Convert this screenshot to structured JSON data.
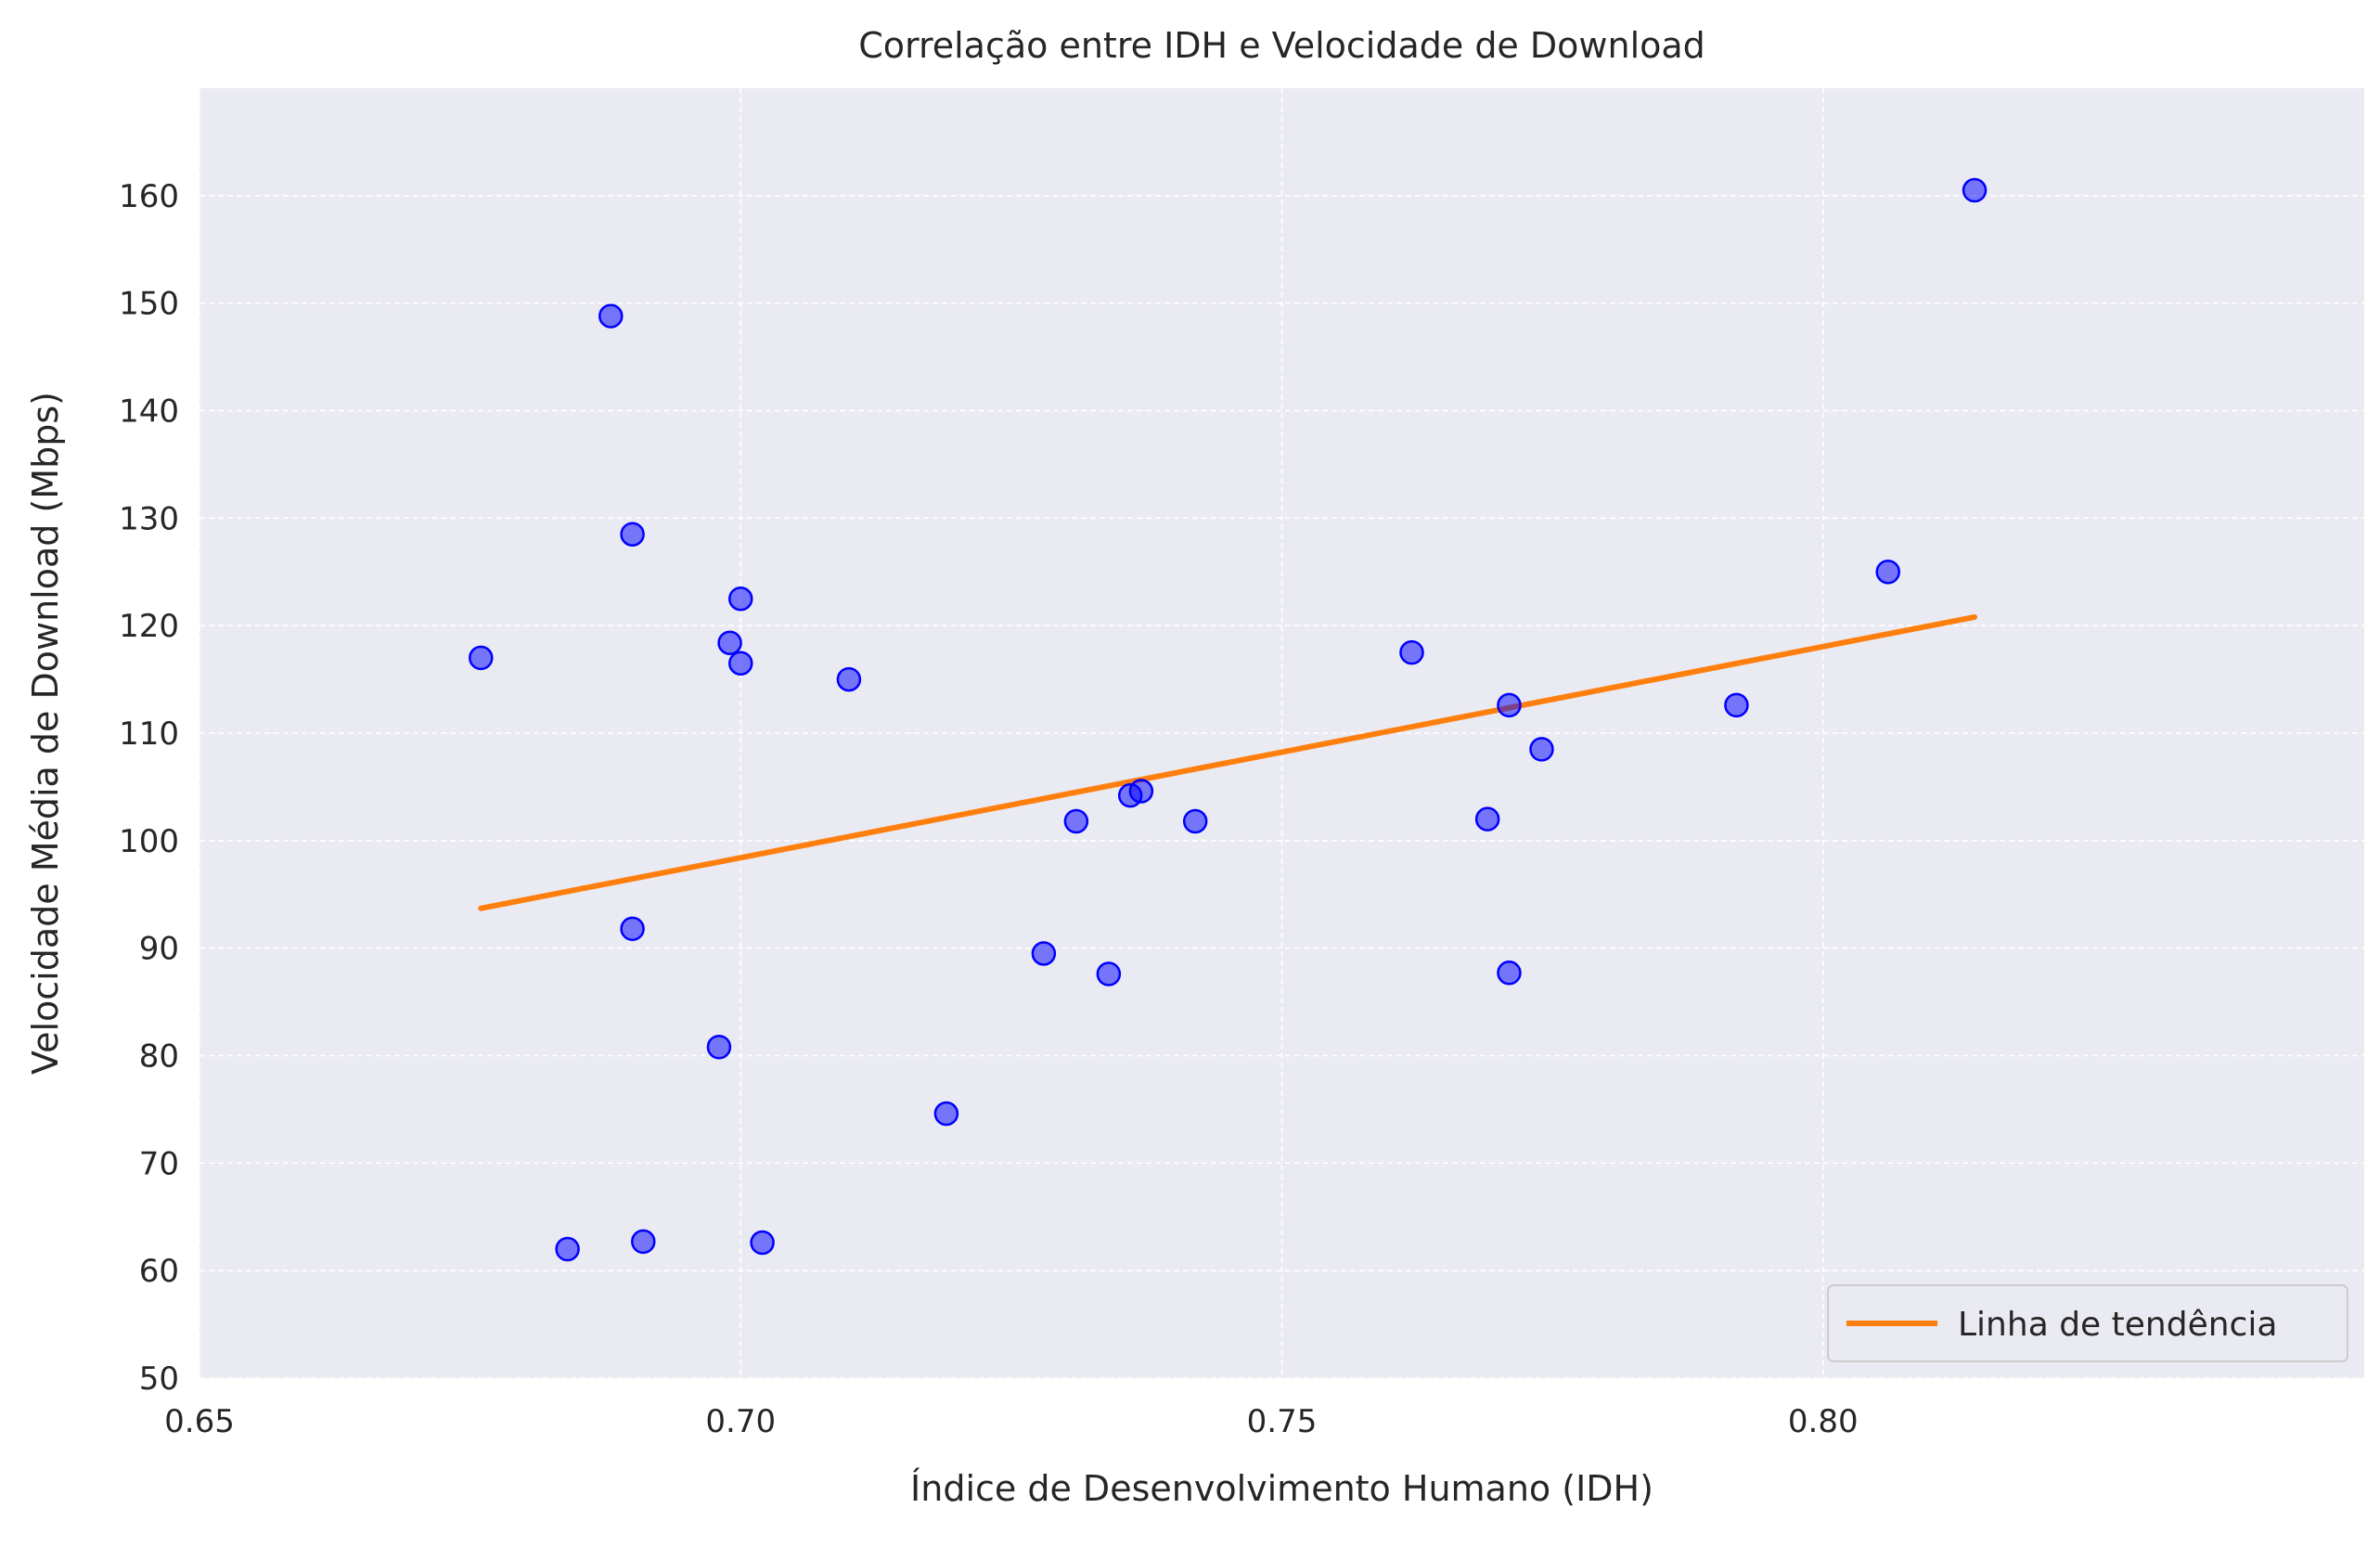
{
  "chart_data": {
    "type": "scatter",
    "title": "Correlação entre IDH e Velocidade de Download",
    "xlabel": "Índice de Desenvolvimento Humano (IDH)",
    "ylabel": "Velocidade Média de Download (Mbps)",
    "xlim": [
      0.65,
      0.85
    ],
    "ylim": [
      50,
      170
    ],
    "xticks": [
      0.65,
      0.7,
      0.75,
      0.8
    ],
    "xtick_labels": [
      "0.65",
      "0.70",
      "0.75",
      "0.80"
    ],
    "yticks": [
      50,
      60,
      70,
      80,
      90,
      100,
      110,
      120,
      130,
      140,
      150,
      160
    ],
    "ytick_labels": [
      "50",
      "60",
      "70",
      "80",
      "90",
      "100",
      "110",
      "120",
      "130",
      "140",
      "150",
      "160"
    ],
    "grid": true,
    "legend_position": "lower-right",
    "background_color": "#eaeaf2",
    "series": [
      {
        "kind": "scatter",
        "color": "#0000ff",
        "points": [
          {
            "x": 0.676,
            "y": 117.0
          },
          {
            "x": 0.684,
            "y": 62.0
          },
          {
            "x": 0.688,
            "y": 148.8
          },
          {
            "x": 0.69,
            "y": 128.5
          },
          {
            "x": 0.69,
            "y": 91.8
          },
          {
            "x": 0.691,
            "y": 62.7
          },
          {
            "x": 0.698,
            "y": 80.8
          },
          {
            "x": 0.699,
            "y": 118.4
          },
          {
            "x": 0.7,
            "y": 122.5
          },
          {
            "x": 0.7,
            "y": 116.5
          },
          {
            "x": 0.702,
            "y": 62.6
          },
          {
            "x": 0.71,
            "y": 115.0
          },
          {
            "x": 0.719,
            "y": 74.6
          },
          {
            "x": 0.728,
            "y": 89.5
          },
          {
            "x": 0.731,
            "y": 101.8
          },
          {
            "x": 0.734,
            "y": 87.6
          },
          {
            "x": 0.736,
            "y": 104.2
          },
          {
            "x": 0.737,
            "y": 104.6
          },
          {
            "x": 0.742,
            "y": 101.8
          },
          {
            "x": 0.762,
            "y": 117.5
          },
          {
            "x": 0.769,
            "y": 102.0
          },
          {
            "x": 0.771,
            "y": 112.6
          },
          {
            "x": 0.771,
            "y": 87.7
          },
          {
            "x": 0.774,
            "y": 108.5
          },
          {
            "x": 0.792,
            "y": 112.6
          },
          {
            "x": 0.806,
            "y": 125.0
          },
          {
            "x": 0.814,
            "y": 160.5
          }
        ]
      },
      {
        "kind": "line",
        "name": "Linha de tendência",
        "color": "#ff7f0e",
        "x": [
          0.676,
          0.814
        ],
        "y": [
          93.7,
          120.8
        ]
      }
    ]
  }
}
